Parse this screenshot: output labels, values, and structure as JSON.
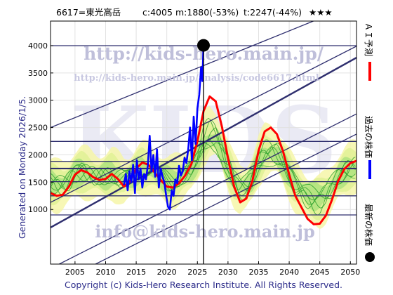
{
  "header": {
    "title": "6617=東光高岳",
    "current": "c:4005",
    "min": "m:1880(-53%)",
    "target": "t:2247(-44%)",
    "stars": "★★★"
  },
  "watermarks": {
    "url": "http://kids-hero.main.jp/",
    "analysis_url": "http://kids-hero.main.jp/analysis/code6617.html",
    "big": "KIDS",
    "email": "info@kids-hero.main.jp"
  },
  "side_label": "Generated on Monday 2026/1/5.",
  "copyright": "Copyright (c) Kids-Hero Research Institute. All Rights Reserved.",
  "legend": [
    {
      "label": "ＡＩ予測",
      "color": "#ff0000"
    },
    {
      "label": "過去の株価",
      "color": "#0000ff"
    },
    {
      "label": "最新の株価",
      "color": "#000000"
    }
  ],
  "chart_data": {
    "type": "line",
    "xlim": [
      2001,
      2051
    ],
    "ylim": [
      0,
      4450
    ],
    "x_ticks": [
      2005,
      2010,
      2015,
      2020,
      2025,
      2030,
      2035,
      2040,
      2045,
      2050
    ],
    "y_ticks": [
      1000,
      1500,
      2000,
      2500,
      3000,
      3500,
      4000
    ],
    "horizontal_levels": [
      4000,
      2247,
      1880,
      1750,
      1510,
      1250,
      900
    ],
    "channel_lines": [
      {
        "x": [
          2001,
          2051
        ],
        "y": [
          2500,
          4770
        ]
      },
      {
        "x": [
          2001,
          2051
        ],
        "y": [
          1130,
          3990
        ]
      },
      {
        "x": [
          2001,
          2051
        ],
        "y": [
          670,
          3780
        ]
      },
      {
        "x": [
          2001,
          2051
        ],
        "y": [
          -80,
          2750
        ]
      },
      {
        "x": [
          2001,
          2051
        ],
        "y": [
          -410,
          2380
        ]
      }
    ],
    "latest_marker": {
      "x": 2026.0,
      "y": 4005
    },
    "series": [
      {
        "name": "ＡＩ予測",
        "color": "#ff0000",
        "x": [
          2001,
          2002,
          2003,
          2004,
          2005,
          2006,
          2007,
          2008,
          2009,
          2010,
          2011,
          2012,
          2013,
          2014,
          2015,
          2016,
          2017,
          2018,
          2019,
          2020,
          2021,
          2022,
          2023,
          2024,
          2025,
          2026,
          2027,
          2028,
          2029,
          2030,
          2031,
          2032,
          2033,
          2034,
          2035,
          2036,
          2037,
          2038,
          2039,
          2040,
          2041,
          2042,
          2043,
          2044,
          2045,
          2046,
          2047,
          2048,
          2049,
          2050,
          2051
        ],
        "y": [
          1300,
          1250,
          1270,
          1420,
          1640,
          1720,
          1680,
          1590,
          1540,
          1560,
          1650,
          1560,
          1420,
          1520,
          1750,
          1860,
          1820,
          1680,
          1540,
          1420,
          1400,
          1480,
          1620,
          1830,
          2250,
          2800,
          3070,
          2980,
          2520,
          1940,
          1420,
          1130,
          1200,
          1530,
          2080,
          2430,
          2500,
          2380,
          2060,
          1640,
          1250,
          1040,
          830,
          730,
          740,
          890,
          1180,
          1520,
          1740,
          1850,
          1890
        ]
      },
      {
        "name": "過去の株価",
        "color": "#0000ff",
        "x": [
          2013.0,
          2013.3,
          2013.6,
          2013.9,
          2014.2,
          2014.5,
          2014.8,
          2015.1,
          2015.4,
          2015.7,
          2016.0,
          2016.3,
          2016.6,
          2016.9,
          2017.2,
          2017.5,
          2017.8,
          2018.1,
          2018.4,
          2018.7,
          2019.0,
          2019.3,
          2019.6,
          2019.9,
          2020.2,
          2020.5,
          2020.8,
          2021.1,
          2021.4,
          2021.7,
          2022.0,
          2022.3,
          2022.6,
          2022.9,
          2023.2,
          2023.5,
          2023.8,
          2024.1,
          2024.4,
          2024.7,
          2025.0,
          2025.3,
          2025.6,
          2025.8,
          2026.0
        ],
        "y": [
          1450,
          1650,
          1350,
          1700,
          1500,
          1820,
          1300,
          1900,
          1550,
          1750,
          1400,
          1650,
          1550,
          1800,
          2350,
          1700,
          2000,
          1600,
          2100,
          1400,
          1750,
          1600,
          1500,
          1250,
          1050,
          1000,
          1350,
          1250,
          1550,
          1480,
          1800,
          1620,
          1700,
          1950,
          1850,
          2100,
          2500,
          1900,
          2700,
          2200,
          2850,
          3100,
          3600,
          3350,
          4005
        ]
      }
    ]
  }
}
